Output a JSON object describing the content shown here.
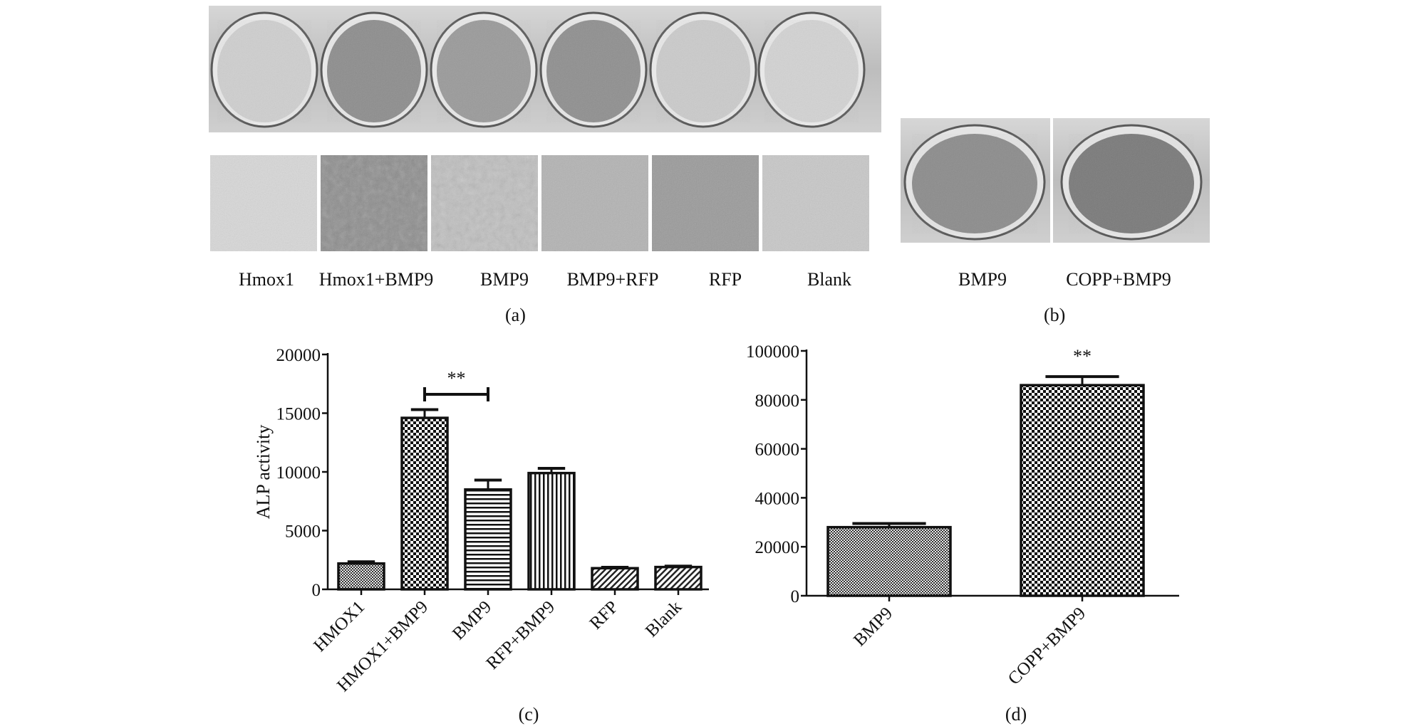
{
  "panel_a": {
    "wells": [
      "Hmox1",
      "Hmox1+BMP9",
      "BMP9",
      "BMP9+RFP",
      "RFP",
      "Blank"
    ],
    "label": "(a)"
  },
  "panel_b": {
    "wells": [
      "BMP9",
      "COPP+BMP9"
    ],
    "label": "(b)"
  },
  "chart_data": [
    {
      "type": "bar",
      "panel": "(c)",
      "categories": [
        "HMOX1",
        "HMOX1+BMP9",
        "BMP9",
        "RFP+BMP9",
        "RFP",
        "Blank"
      ],
      "values": [
        2200,
        14600,
        8500,
        9900,
        1800,
        1900
      ],
      "errors": [
        150,
        700,
        800,
        400,
        80,
        80
      ],
      "patterns": [
        "dense-check",
        "check",
        "hstripe",
        "vstripe",
        "diag",
        "diag"
      ],
      "ylabel": "ALP activity",
      "xlabel": "",
      "ylim": [
        0,
        20000
      ],
      "yticks": [
        "0",
        "5000",
        "10000",
        "15000",
        "20000"
      ],
      "significance": {
        "from": "HMOX1+BMP9",
        "to": "BMP9",
        "label": "**"
      }
    },
    {
      "type": "bar",
      "panel": "(d)",
      "categories": [
        "BMP9",
        "COPP+BMP9"
      ],
      "values": [
        28000,
        86000
      ],
      "errors": [
        1500,
        3500
      ],
      "patterns": [
        "dense-check",
        "check"
      ],
      "ylabel": "",
      "xlabel": "",
      "ylim": [
        0,
        100000
      ],
      "yticks": [
        "0",
        "20000",
        "40000",
        "60000",
        "80000",
        "100000"
      ],
      "significance": {
        "on": "COPP+BMP9",
        "label": "**"
      }
    }
  ]
}
